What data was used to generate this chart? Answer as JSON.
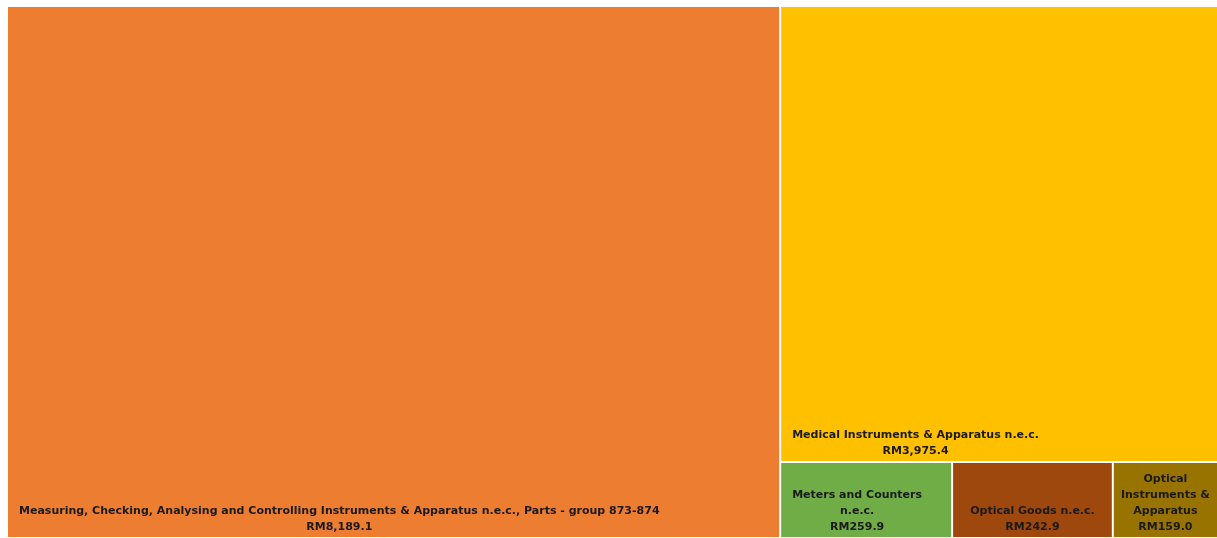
{
  "chart_data": {
    "type": "other",
    "categories": [
      "Measuring, Checking, Analysing and Controlling Instruments & Apparatus n.e.c., Parts - group 873-874",
      "Medical Instruments & Apparatus n.e.c.",
      "Meters and Counters n.e.c.",
      "Optical Goods n.e.c.",
      "Optical Instruments & Apparatus"
    ],
    "values": [
      8189.1,
      3975.4,
      259.9,
      242.9,
      159.0
    ],
    "value_labels": [
      "RM8,189.1",
      "RM3,975.4",
      "RM259.9",
      "RM242.9",
      "RM159.0"
    ],
    "colors": [
      "#ed7d31",
      "#ffc000",
      "#70ad47",
      "#9e480e",
      "#997300"
    ]
  }
}
